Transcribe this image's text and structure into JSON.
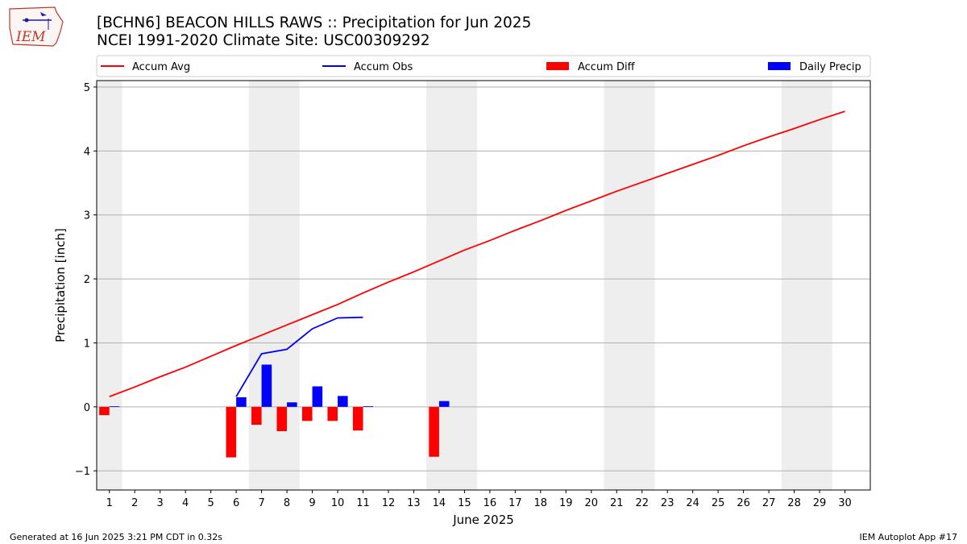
{
  "header": {
    "title_line1": "[BCHN6] BEACON HILLS RAWS :: Precipitation for Jun 2025",
    "title_line2": "NCEI 1991-2020 Climate Site: USC00309292"
  },
  "logo": {
    "text": "IEM"
  },
  "footer": {
    "generated": "Generated at 16 Jun 2025 3:21 PM CDT in 0.32s",
    "app": "IEM Autoplot App #17"
  },
  "chart_data": {
    "type": "bar",
    "xlabel": "June 2025",
    "ylabel": "Precipitation [inch]",
    "xlim": [
      0.5,
      31
    ],
    "ylim": [
      -1.3,
      5.1
    ],
    "yticks": [
      -1,
      0,
      1,
      2,
      3,
      4,
      5
    ],
    "ytick_labels": [
      "−1",
      "0",
      "1",
      "2",
      "3",
      "4",
      "5"
    ],
    "days": [
      1,
      2,
      3,
      4,
      5,
      6,
      7,
      8,
      9,
      10,
      11,
      12,
      13,
      14,
      15,
      16,
      17,
      18,
      19,
      20,
      21,
      22,
      23,
      24,
      25,
      26,
      27,
      28,
      29,
      30
    ],
    "weekend_bands": [
      [
        0.5,
        1.5
      ],
      [
        6.5,
        8.5
      ],
      [
        13.5,
        15.5
      ],
      [
        20.5,
        22.5
      ],
      [
        27.5,
        29.5
      ]
    ],
    "grid": "horizontal",
    "legend_placement": "top",
    "legend": [
      {
        "name": "Accum Avg",
        "kind": "line",
        "color": "#ff0000"
      },
      {
        "name": "Accum Obs",
        "kind": "line",
        "color": "#0000ff"
      },
      {
        "name": "Accum Diff",
        "kind": "bar",
        "color": "#ff0000"
      },
      {
        "name": "Daily Precip",
        "kind": "bar",
        "color": "#0000ff"
      }
    ],
    "series": [
      {
        "name": "Accum Avg",
        "type": "line",
        "color": "#ff0000",
        "x": [
          1,
          2,
          3,
          4,
          5,
          6,
          7,
          8,
          9,
          10,
          11,
          12,
          13,
          14,
          15,
          16,
          17,
          18,
          19,
          20,
          21,
          22,
          23,
          24,
          25,
          26,
          27,
          28,
          29,
          30
        ],
        "values": [
          0.16,
          0.31,
          0.47,
          0.62,
          0.79,
          0.96,
          1.12,
          1.28,
          1.44,
          1.6,
          1.78,
          1.95,
          2.11,
          2.28,
          2.45,
          2.6,
          2.76,
          2.91,
          3.07,
          3.22,
          3.37,
          3.51,
          3.65,
          3.79,
          3.93,
          4.08,
          4.22,
          4.35,
          4.49,
          4.62
        ]
      },
      {
        "name": "Accum Obs",
        "type": "line",
        "color": "#0000ff",
        "x": [
          6,
          7,
          8,
          9,
          10,
          11
        ],
        "values": [
          0.16,
          0.83,
          0.9,
          1.22,
          1.39,
          1.4
        ]
      },
      {
        "name": "Accum Diff",
        "type": "bar",
        "color": "#ff0000",
        "x": [
          1,
          6,
          7,
          8,
          9,
          10,
          11,
          14
        ],
        "values": [
          -0.13,
          -0.79,
          -0.28,
          -0.38,
          -0.22,
          -0.22,
          -0.37,
          -0.78
        ]
      },
      {
        "name": "Daily Precip",
        "type": "bar",
        "color": "#0000ff",
        "x": [
          1,
          6,
          7,
          8,
          9,
          10,
          11,
          14
        ],
        "values": [
          0.01,
          0.15,
          0.66,
          0.07,
          0.32,
          0.17,
          0.01,
          0.09
        ]
      }
    ]
  }
}
